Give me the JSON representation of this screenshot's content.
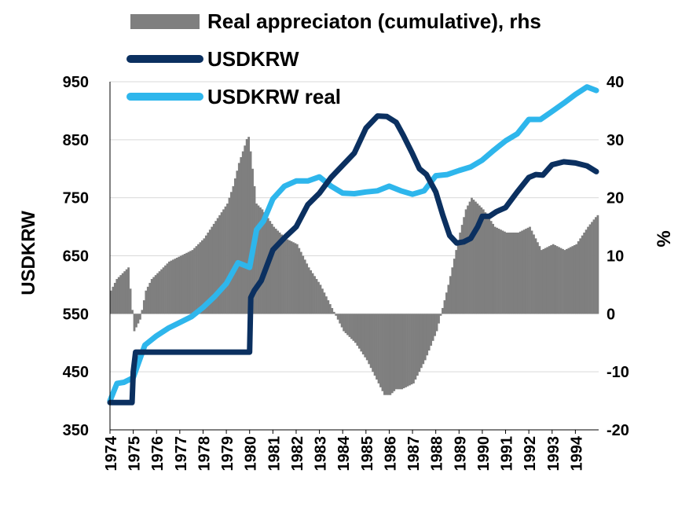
{
  "chart_data": {
    "type": "line",
    "title": "",
    "xlabel": "",
    "ylabel": "USDKRW",
    "y2label": "%",
    "xlim": [
      1974,
      1995
    ],
    "ylim": [
      350,
      950
    ],
    "y2lim": [
      -20,
      40
    ],
    "x_ticks": [
      "1974",
      "1975",
      "1976",
      "1977",
      "1978",
      "1979",
      "1980",
      "1981",
      "1982",
      "1983",
      "1984",
      "1985",
      "1986",
      "1987",
      "1988",
      "1989",
      "1990",
      "1991",
      "1992",
      "1993",
      "1994"
    ],
    "y_ticks": [
      "350",
      "450",
      "550",
      "650",
      "750",
      "850",
      "950"
    ],
    "y2_ticks": [
      "-20",
      "-10",
      "0",
      "10",
      "20",
      "30",
      "40"
    ],
    "grid": true,
    "legend_position": "top",
    "colors": {
      "bars": "#7f7f7f",
      "usdkrw": "#0b3060",
      "usdkrw_real": "#2eb6ec"
    },
    "series": [
      {
        "name": "Real appreciaton (cumulative), rhs",
        "kind": "bar",
        "axis": "right",
        "x": [
          1974.0,
          1974.25,
          1974.5,
          1974.75,
          1975.0,
          1975.25,
          1975.5,
          1975.75,
          1976.0,
          1976.5,
          1977.0,
          1977.5,
          1978.0,
          1978.5,
          1979.0,
          1979.25,
          1979.5,
          1979.75,
          1979.9,
          1980.0,
          1980.25,
          1980.5,
          1981.0,
          1981.5,
          1982.0,
          1982.5,
          1983.0,
          1983.5,
          1984.0,
          1984.5,
          1985.0,
          1985.5,
          1985.75,
          1986.0,
          1986.25,
          1986.5,
          1987.0,
          1987.5,
          1988.0,
          1988.5,
          1989.0,
          1989.25,
          1989.5,
          1990.0,
          1990.5,
          1991.0,
          1991.5,
          1992.0,
          1992.5,
          1993.0,
          1993.5,
          1994.0,
          1994.5,
          1994.9
        ],
        "values": [
          4,
          6,
          7,
          8,
          -3,
          -1,
          4,
          6,
          7,
          9,
          10,
          11,
          13,
          16,
          19,
          22,
          26,
          29,
          31,
          28,
          19,
          18,
          15,
          13,
          12,
          8,
          5,
          1,
          -3,
          -5,
          -8,
          -12,
          -14,
          -14,
          -13,
          -13,
          -12,
          -8,
          -3,
          5,
          14,
          18,
          20,
          18,
          15,
          14,
          14,
          15,
          11,
          12,
          11,
          12,
          15,
          17
        ]
      },
      {
        "name": "USDKRW",
        "kind": "line",
        "axis": "left",
        "x": [
          1974.0,
          1974.95,
          1975.0,
          1975.1,
          1976.0,
          1977.0,
          1978.0,
          1979.0,
          1980.0,
          1980.05,
          1980.2,
          1980.5,
          1981.0,
          1981.5,
          1982.0,
          1982.5,
          1983.0,
          1983.5,
          1984.0,
          1984.5,
          1985.0,
          1985.5,
          1985.9,
          1986.3,
          1986.6,
          1987.0,
          1987.3,
          1987.6,
          1988.0,
          1988.3,
          1988.6,
          1988.9,
          1989.2,
          1989.5,
          1989.8,
          1990.0,
          1990.3,
          1990.6,
          1991.0,
          1991.5,
          1992.0,
          1992.3,
          1992.6,
          1993.0,
          1993.5,
          1994.0,
          1994.5,
          1994.9
        ],
        "values": [
          397,
          397,
          450,
          484,
          484,
          484,
          484,
          484,
          484,
          578,
          590,
          607,
          660,
          681,
          700,
          738,
          758,
          785,
          806,
          827,
          870,
          891,
          890,
          880,
          858,
          826,
          800,
          790,
          760,
          720,
          685,
          672,
          674,
          680,
          700,
          718,
          718,
          726,
          733,
          760,
          785,
          790,
          789,
          807,
          812,
          810,
          805,
          795
        ]
      },
      {
        "name": "USDKRW real",
        "kind": "line",
        "axis": "left",
        "x": [
          1974.0,
          1974.3,
          1974.6,
          1975.0,
          1975.5,
          1976.0,
          1976.5,
          1977.0,
          1977.5,
          1978.0,
          1978.5,
          1979.0,
          1979.5,
          1980.0,
          1980.3,
          1980.6,
          1981.0,
          1981.5,
          1982.0,
          1982.5,
          1983.0,
          1983.5,
          1984.0,
          1984.5,
          1985.0,
          1985.5,
          1986.0,
          1986.5,
          1987.0,
          1987.5,
          1988.0,
          1988.5,
          1989.0,
          1989.5,
          1990.0,
          1990.5,
          1991.0,
          1991.5,
          1992.0,
          1992.5,
          1993.0,
          1993.5,
          1994.0,
          1994.5,
          1994.9
        ],
        "values": [
          400,
          430,
          432,
          440,
          496,
          512,
          525,
          535,
          545,
          561,
          580,
          602,
          638,
          630,
          695,
          710,
          748,
          770,
          779,
          779,
          786,
          770,
          758,
          757,
          760,
          762,
          770,
          762,
          756,
          762,
          788,
          790,
          797,
          803,
          815,
          832,
          848,
          860,
          885,
          885,
          899,
          913,
          928,
          941,
          935
        ]
      }
    ]
  }
}
